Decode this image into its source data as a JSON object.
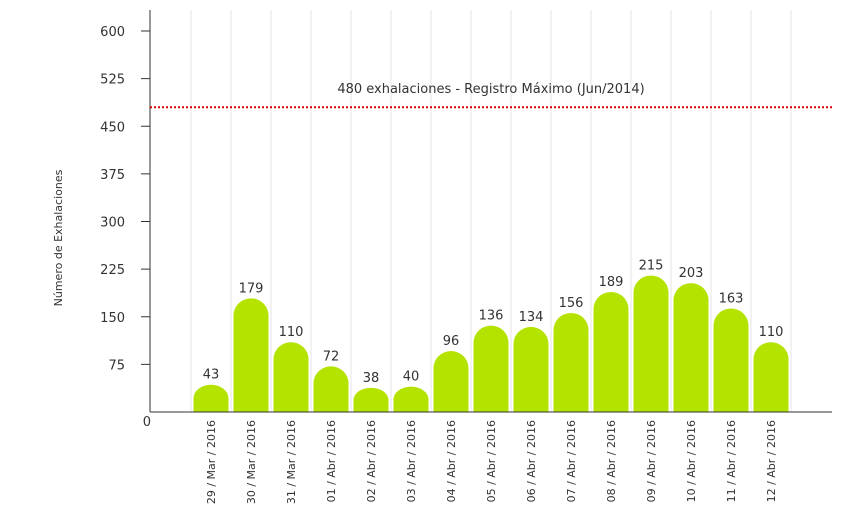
{
  "chart_data": {
    "type": "bar",
    "ylabel": "Número de Exhalaciones",
    "ylim": [
      0,
      600
    ],
    "yticks": [
      0,
      75,
      150,
      225,
      300,
      375,
      450,
      525,
      600
    ],
    "grid": "vertical",
    "bar_color": "#b5e300",
    "categories": [
      "29 / Mar / 2016",
      "30 / Mar / 2016",
      "31 / Mar / 2016",
      "01 / Abr / 2016",
      "02 / Abr / 2016",
      "03 / Abr / 2016",
      "04 / Abr / 2016",
      "05 / Abr / 2016",
      "06 / Abr / 2016",
      "07 / Abr / 2016",
      "08 / Abr / 2016",
      "09 / Abr / 2016",
      "10 / Abr / 2016",
      "11 / Abr / 2016",
      "12 / Abr / 2016"
    ],
    "values": [
      43,
      179,
      110,
      72,
      38,
      40,
      96,
      136,
      134,
      156,
      189,
      215,
      203,
      163,
      110
    ],
    "reference_line": {
      "value": 480,
      "label": "480 exhalaciones -  Registro Máximo (Jun/2014)",
      "color": "#dd0000"
    }
  }
}
